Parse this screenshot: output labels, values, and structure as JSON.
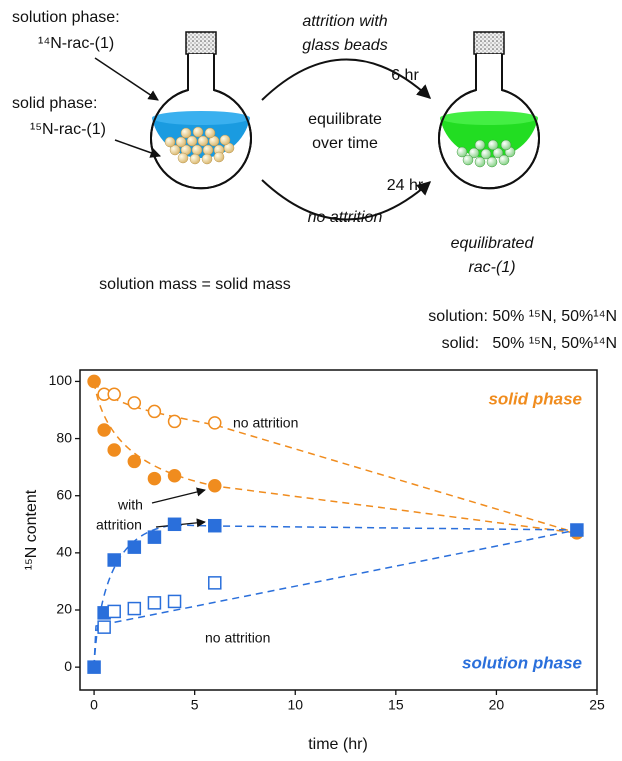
{
  "scheme": {
    "solution_label": "solution phase:",
    "solution_compound": "¹⁴N-rac-(1)",
    "solid_label": "solid phase:",
    "solid_compound": "¹⁵N-rac-(1)",
    "top_arrow": [
      "attrition with",
      "glass beads"
    ],
    "top_time": "6 hr",
    "middle": [
      "equilibrate",
      "over time"
    ],
    "bottom_time": "24 hr",
    "bottom_arrow": "no attrition",
    "product": [
      "equilibrated",
      "rac-(1)"
    ],
    "mass_note": "solution mass = solid mass",
    "solution_result": "solution: 50% ¹⁵N, 50%¹⁴N",
    "solid_result": "solid:   50% ¹⁵N, 50%¹⁴N"
  },
  "chart_data": {
    "type": "scatter",
    "xlabel": "time (hr)",
    "ylabel": "¹⁵N content",
    "xlim": [
      -0.7,
      25
    ],
    "ylim": [
      -8,
      104
    ],
    "xticks": [
      0,
      5,
      10,
      15,
      20,
      25
    ],
    "yticks": [
      0,
      20,
      40,
      60,
      80,
      100
    ],
    "series": [
      {
        "color": "#f08c1e",
        "marker": "circle",
        "filled": true,
        "x": [
          0,
          0.5,
          1,
          2,
          3,
          4,
          6,
          24
        ],
        "values": [
          100,
          83,
          76,
          72,
          66,
          67,
          63.5,
          47
        ]
      },
      {
        "color": "#f08c1e",
        "marker": "circle",
        "filled": false,
        "x": [
          0.5,
          1,
          2,
          3,
          4,
          6
        ],
        "values": [
          95.5,
          95.5,
          92.5,
          89.5,
          86,
          85.5
        ]
      },
      {
        "color": "#2a6fdb",
        "marker": "square",
        "filled": true,
        "x": [
          0,
          0.5,
          1,
          2,
          3,
          4,
          6,
          24
        ],
        "values": [
          0,
          19,
          37.5,
          42,
          45.5,
          50,
          49.5,
          48
        ]
      },
      {
        "color": "#2a6fdb",
        "marker": "square",
        "filled": false,
        "x": [
          0.5,
          1,
          2,
          3,
          4,
          6
        ],
        "values": [
          14,
          19.5,
          20.5,
          22.5,
          23,
          29.5
        ]
      }
    ],
    "annotations": [
      "solid phase",
      "no attrition",
      "with",
      "attrition",
      "no attrition",
      "solution phase"
    ]
  }
}
